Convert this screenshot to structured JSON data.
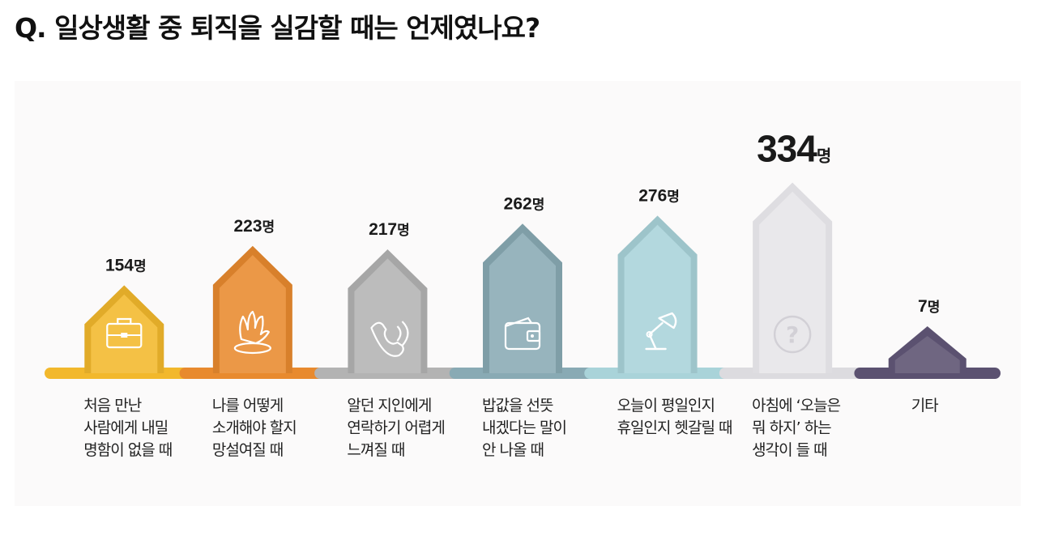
{
  "page_title": "Q. 일상생활 중 퇴직을 실감할 때는 언제였나요?",
  "unit": "명",
  "chart_data": {
    "type": "bar",
    "title": "Q. 일상생활 중 퇴직을 실감할 때는 언제였나요?",
    "unit": "명",
    "categories": [
      [
        "처음 만난",
        "사람에게 내밀",
        "명함이 없을 때"
      ],
      [
        "나를 어떻게",
        "소개해야 할지",
        "망설여질 때"
      ],
      [
        "알던 지인에게",
        "연락하기 어렵게",
        "느껴질 때"
      ],
      [
        "밥값을 선뜻",
        "내겠다는 말이",
        "안 나올 때"
      ],
      [
        "오늘이 평일인지",
        "휴일인지 헷갈릴 때"
      ],
      [
        "아침에 ‘오늘은",
        "뭐 하지’ 하는",
        "생각이 들 때"
      ],
      [
        "기타"
      ]
    ],
    "values": [
      154,
      223,
      217,
      262,
      276,
      334,
      7
    ],
    "value_labels": [
      "154",
      "223",
      "217",
      "262",
      "276",
      "334",
      "7"
    ],
    "colors": [
      "#f2b82c",
      "#e88a2e",
      "#b3b3b3",
      "#89aab4",
      "#a9d3d9",
      "#e6e5e8",
      "#5b5170"
    ],
    "icons": [
      "briefcase-icon",
      "raised-hand-icon",
      "phone-call-icon",
      "wallet-icon",
      "desk-lamp-icon",
      "question-mark-icon",
      ""
    ],
    "highlight_index": 5
  }
}
